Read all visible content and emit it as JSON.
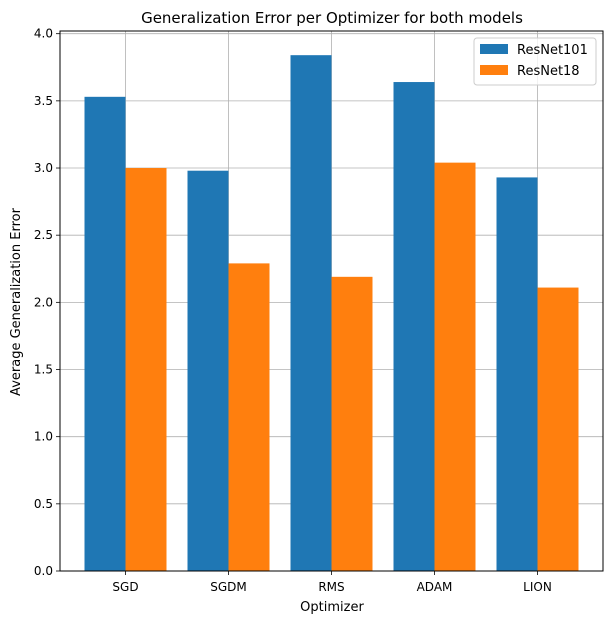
{
  "chart_data": {
    "type": "bar",
    "title": "Generalization Error per Optimizer for both models",
    "xlabel": "Optimizer",
    "ylabel": "Average Generalization Error",
    "categories": [
      "SGD",
      "SGDM",
      "RMS",
      "ADAM",
      "LION"
    ],
    "series": [
      {
        "name": "ResNet101",
        "color": "#1f77b4",
        "values": [
          3.53,
          2.98,
          3.84,
          3.64,
          2.93
        ]
      },
      {
        "name": "ResNet18",
        "color": "#ff7f0e",
        "values": [
          3.0,
          2.29,
          2.19,
          3.04,
          2.11
        ]
      }
    ],
    "ylim": [
      0,
      4.02
    ],
    "yticks": [
      0.0,
      0.5,
      1.0,
      1.5,
      2.0,
      2.5,
      3.0,
      3.5,
      4.0
    ],
    "ytick_labels": [
      "0.0",
      "0.5",
      "1.0",
      "1.5",
      "2.0",
      "2.5",
      "3.0",
      "3.5",
      "4.0"
    ],
    "grid": true,
    "legend": "top-right"
  }
}
